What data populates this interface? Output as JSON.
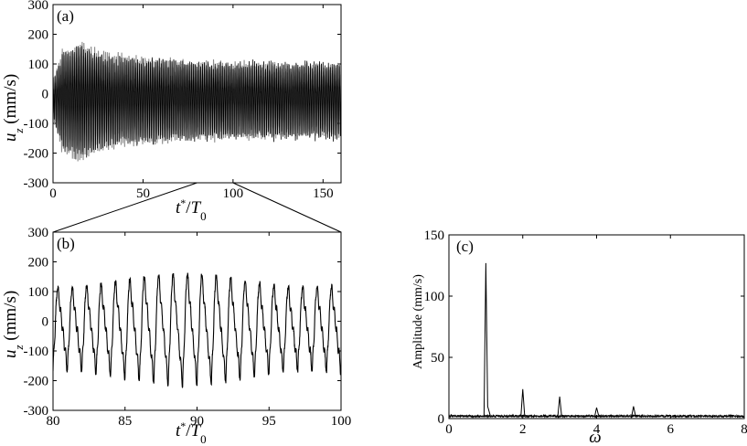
{
  "chart_data": [
    {
      "panel": "(a)",
      "type": "line",
      "xlabel": "t*/T0",
      "ylabel": "u_z (mm/s)",
      "xlim": [
        0,
        160
      ],
      "ylim": [
        -300,
        300
      ],
      "xticks": [
        0,
        50,
        100,
        150
      ],
      "yticks": [
        -300,
        -200,
        -100,
        0,
        100,
        200,
        300
      ],
      "series": [
        {
          "role": "gray trace",
          "color": "#8c8c8c",
          "period": 1.0,
          "amplitude_envelope": {
            "t": [
              0,
              5,
              15,
              30,
              60,
              100,
              160
            ],
            "amp": [
              80,
              200,
              235,
              190,
              165,
              150,
              140
            ]
          }
        },
        {
          "role": "black trace",
          "color": "#000000",
          "period": 1.0,
          "amplitude_envelope": {
            "t": [
              0,
              5,
              15,
              30,
              60,
              100,
              160
            ],
            "amp": [
              70,
              190,
              225,
              175,
              160,
              150,
              150
            ]
          }
        }
      ],
      "grid": false
    },
    {
      "panel": "(b)",
      "type": "line",
      "xlabel": "t*/T0",
      "ylabel": "u_z (mm/s)",
      "xlim": [
        80,
        100
      ],
      "ylim": [
        -300,
        300
      ],
      "xticks": [
        80,
        85,
        90,
        95,
        100
      ],
      "yticks": [
        -300,
        -200,
        -100,
        0,
        100,
        200,
        300
      ],
      "series": [
        {
          "role": "zoomed trace",
          "color": "#000000",
          "period": 1.0,
          "range": [
            -190,
            155
          ]
        }
      ],
      "grid": false
    },
    {
      "panel": "(c)",
      "type": "line",
      "xlabel": "ω",
      "ylabel": "Amplitude (mm/s)",
      "xlim": [
        0,
        8
      ],
      "ylim": [
        0,
        150
      ],
      "xticks": [
        0,
        2,
        4,
        6,
        8
      ],
      "yticks": [
        0,
        50,
        100,
        150
      ],
      "peaks": [
        {
          "x": 1,
          "y": 127
        },
        {
          "x": 2,
          "y": 24
        },
        {
          "x": 3,
          "y": 18
        },
        {
          "x": 4,
          "y": 9
        },
        {
          "x": 5,
          "y": 10
        }
      ],
      "baseline": 2,
      "grid": false
    }
  ]
}
